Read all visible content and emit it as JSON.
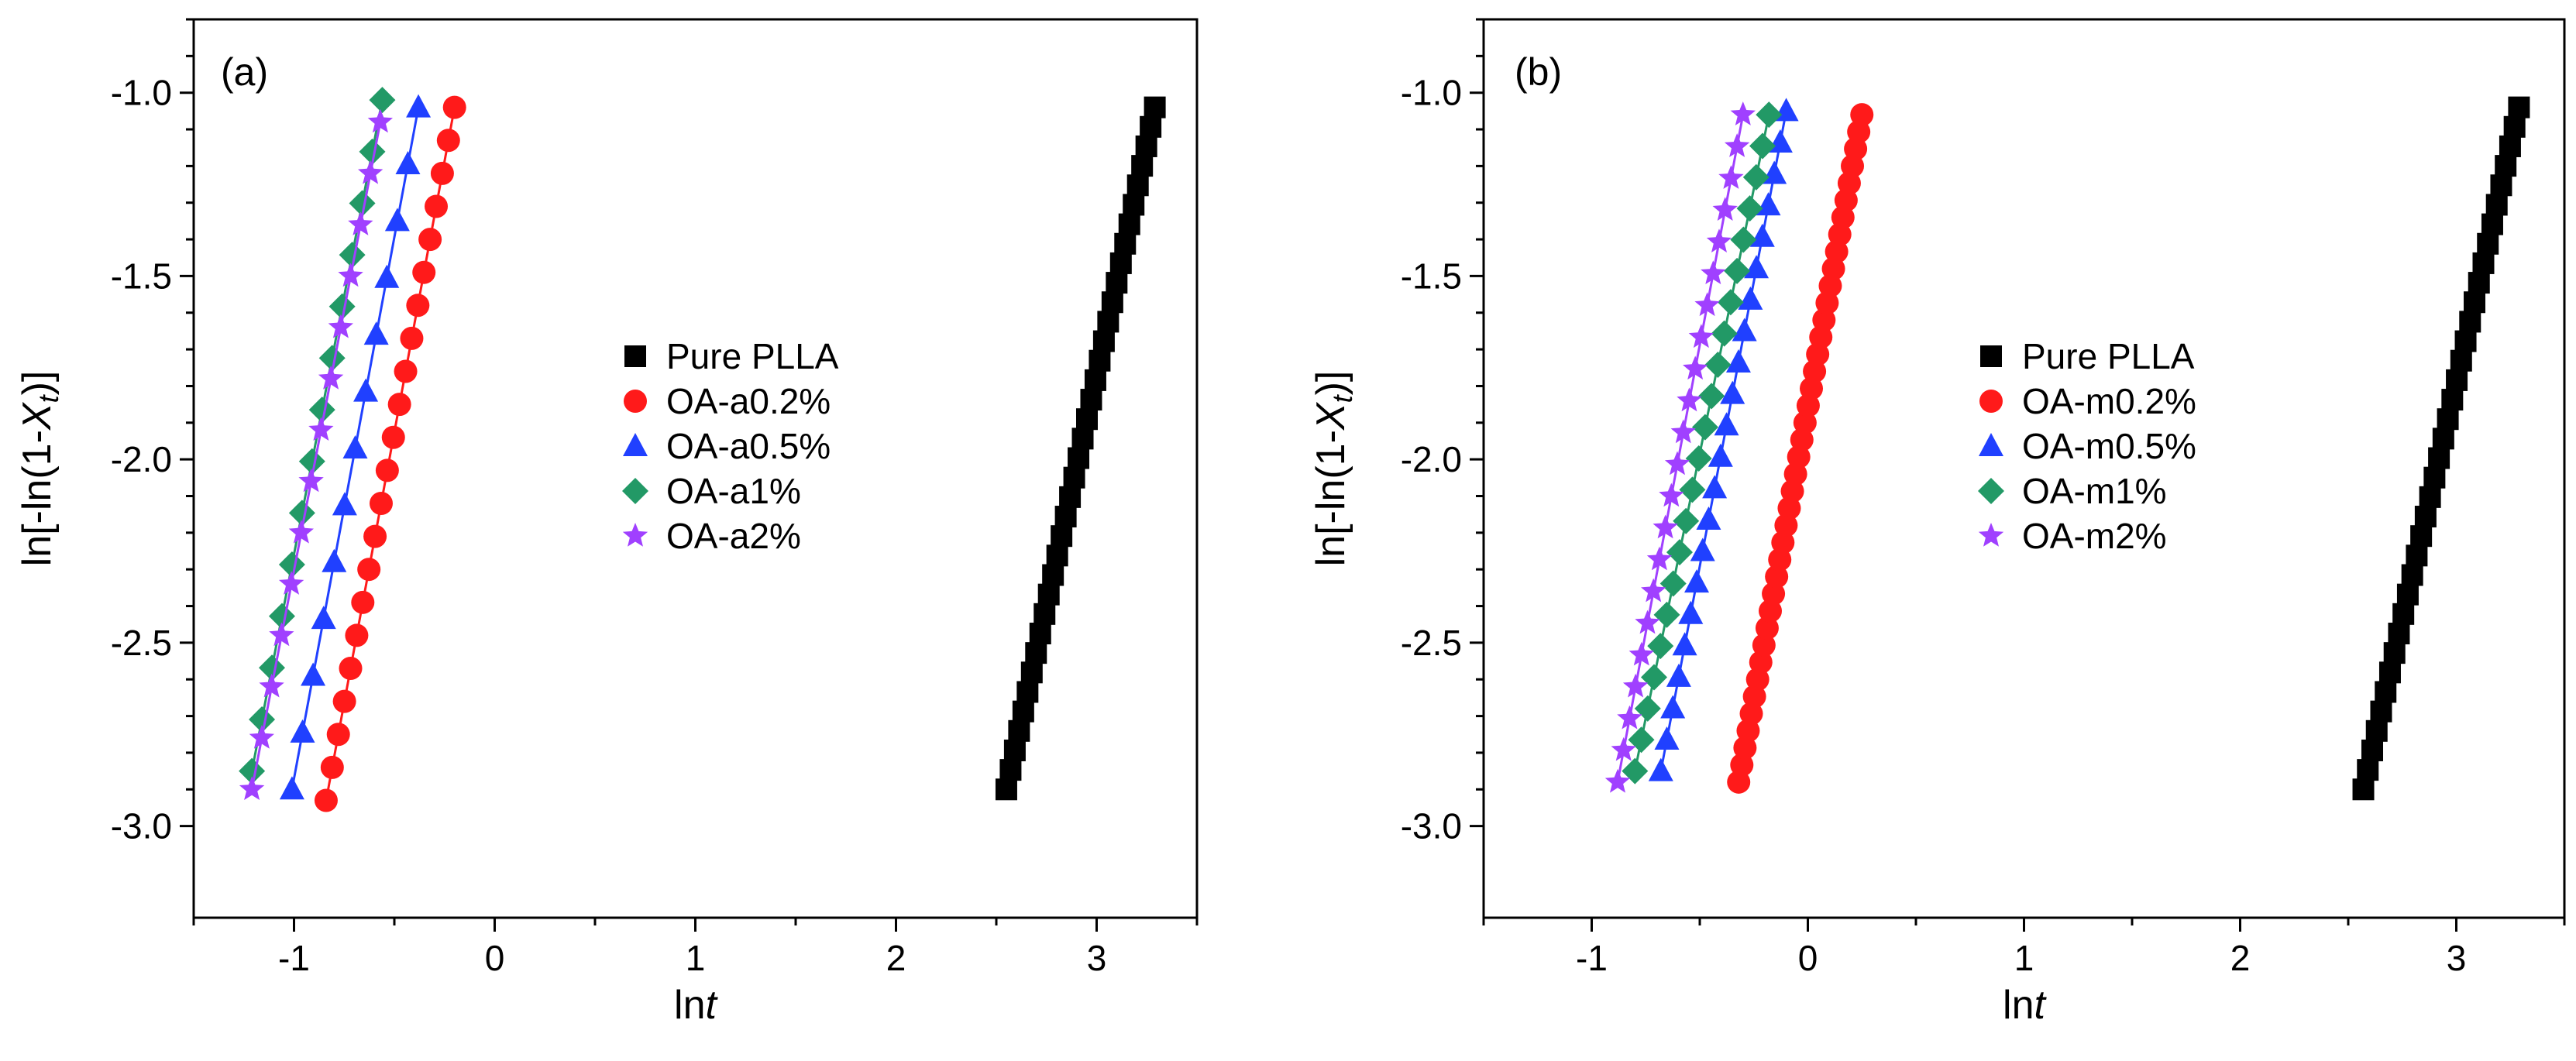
{
  "chart_data": [
    {
      "panel": "(a)",
      "type": "scatter",
      "xlabel": "lnt",
      "ylabel": "ln[-ln(1-Xt)]",
      "xlim": [
        -1.5,
        3.5
      ],
      "ylim": [
        -3.25,
        -0.8
      ],
      "xticks": [
        -1,
        0,
        1,
        2,
        3
      ],
      "yticks": [
        -3.0,
        -2.5,
        -2.0,
        -1.5,
        -1.0
      ],
      "legend_position": "center",
      "series": [
        {
          "name": "Pure PLLA",
          "marker": "square",
          "color": "#000000",
          "x_start": 2.55,
          "y_start": -2.9,
          "x_end": 3.29,
          "y_end": -1.04,
          "n_points": 36
        },
        {
          "name": "OA-a0.2%",
          "marker": "circle",
          "color": "#ff1a1a",
          "x_start": -0.84,
          "y_start": -2.93,
          "x_end": -0.2,
          "y_end": -1.04,
          "n_points": 22
        },
        {
          "name": "OA-a0.5%",
          "marker": "triangle",
          "color": "#2040ff",
          "x_start": -1.01,
          "y_start": -2.9,
          "x_end": -0.38,
          "y_end": -1.04,
          "n_points": 13
        },
        {
          "name": "OA-a1%",
          "marker": "diamond",
          "color": "#229966",
          "x_start": -1.21,
          "y_start": -2.85,
          "x_end": -0.56,
          "y_end": -1.02,
          "n_points": 14
        },
        {
          "name": "OA-a2%",
          "marker": "star",
          "color": "#a040ff",
          "x_start": -1.21,
          "y_start": -2.9,
          "x_end": -0.57,
          "y_end": -1.08,
          "n_points": 14
        }
      ]
    },
    {
      "panel": "(b)",
      "type": "scatter",
      "xlabel": "lnt",
      "ylabel": "ln[-ln(1-Xt)]",
      "xlim": [
        -1.5,
        3.5
      ],
      "ylim": [
        -3.25,
        -0.8
      ],
      "xticks": [
        -1,
        0,
        1,
        2,
        3
      ],
      "yticks": [
        -3.0,
        -2.5,
        -2.0,
        -1.5,
        -1.0
      ],
      "legend_position": "center",
      "series": [
        {
          "name": "Pure PLLA",
          "marker": "square",
          "color": "#000000",
          "x_start": 2.57,
          "y_start": -2.9,
          "x_end": 3.29,
          "y_end": -1.04,
          "n_points": 36
        },
        {
          "name": "OA-m0.2%",
          "marker": "circle",
          "color": "#ff1a1a",
          "x_start": -0.32,
          "y_start": -2.88,
          "x_end": 0.25,
          "y_end": -1.06,
          "n_points": 40
        },
        {
          "name": "OA-m0.5%",
          "marker": "triangle",
          "color": "#2040ff",
          "x_start": -0.68,
          "y_start": -2.85,
          "x_end": -0.1,
          "y_end": -1.05,
          "n_points": 22
        },
        {
          "name": "OA-m1%",
          "marker": "diamond",
          "color": "#229966",
          "x_start": -0.8,
          "y_start": -2.85,
          "x_end": -0.18,
          "y_end": -1.06,
          "n_points": 22
        },
        {
          "name": "OA-m2%",
          "marker": "star",
          "color": "#a040ff",
          "x_start": -0.88,
          "y_start": -2.88,
          "x_end": -0.3,
          "y_end": -1.06,
          "n_points": 22
        }
      ]
    }
  ]
}
